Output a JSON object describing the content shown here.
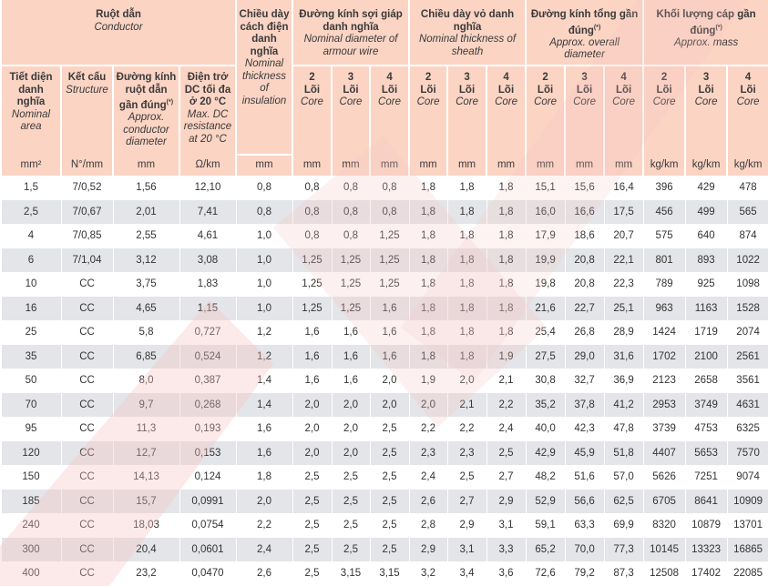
{
  "header": {
    "conductor": {
      "vi": "Ruột dẫn",
      "en": "Conductor"
    },
    "insulation": {
      "vi": "Chiều dày cách điện danh nghĩa",
      "en": "Nominal thickness of insulation",
      "unit": "mm"
    },
    "armour": {
      "vi": "Đường kính sợi giáp danh nghĩa",
      "en": "Nominal diameter of armour wire"
    },
    "sheath": {
      "vi": "Chiều dày vỏ danh nghĩa",
      "en": "Nominal thickness of sheath"
    },
    "overall": {
      "vi": "Đường kính tổng gần đúng",
      "sup": "(*)",
      "en": "Approx. overall diameter"
    },
    "mass": {
      "vi": "Khối lượng cáp gần đúng",
      "sup": "(*)",
      "en": "Approx. mass"
    },
    "area": {
      "vi": "Tiết diện danh nghĩa",
      "en": "Nominal area",
      "unit": "mm²"
    },
    "structure": {
      "vi": "Kết cấu",
      "en": "Structure",
      "unit": "N°/mm"
    },
    "cond_diam": {
      "vi": "Đường kính ruột dẫn gần đúng",
      "sup": "(*)",
      "en": "Approx. conductor diameter",
      "unit": "mm"
    },
    "resistance": {
      "vi": "Điện trở DC tối đa ở 20 °C",
      "en": "Max. DC resistance at 20 °C",
      "unit": "Ω/km"
    },
    "core_word_vi": "Lõi",
    "core_word_en": "Core",
    "cores": [
      "2",
      "3",
      "4"
    ],
    "unit_mm": "mm",
    "unit_kgkm": "kg/km"
  },
  "rows": [
    [
      "1,5",
      "7/0,52",
      "1,56",
      "12,10",
      "0,8",
      "0,8",
      "0,8",
      "0,8",
      "1,8",
      "1,8",
      "1,8",
      "15,1",
      "15,6",
      "16,4",
      "396",
      "429",
      "478"
    ],
    [
      "2,5",
      "7/0,67",
      "2,01",
      "7,41",
      "0,8",
      "0,8",
      "0,8",
      "0,8",
      "1,8",
      "1,8",
      "1,8",
      "16,0",
      "16,6",
      "17,5",
      "456",
      "499",
      "565"
    ],
    [
      "4",
      "7/0,85",
      "2,55",
      "4,61",
      "1,0",
      "0,8",
      "0,8",
      "1,25",
      "1,8",
      "1,8",
      "1,8",
      "17,9",
      "18,6",
      "20,7",
      "575",
      "640",
      "874"
    ],
    [
      "6",
      "7/1,04",
      "3,12",
      "3,08",
      "1,0",
      "1,25",
      "1,25",
      "1,25",
      "1,8",
      "1,8",
      "1,8",
      "19,9",
      "20,8",
      "22,1",
      "801",
      "893",
      "1022"
    ],
    [
      "10",
      "CC",
      "3,75",
      "1,83",
      "1,0",
      "1,25",
      "1,25",
      "1,25",
      "1,8",
      "1,8",
      "1,8",
      "19,8",
      "20,8",
      "22,3",
      "789",
      "925",
      "1098"
    ],
    [
      "16",
      "CC",
      "4,65",
      "1,15",
      "1,0",
      "1,25",
      "1,25",
      "1,6",
      "1,8",
      "1,8",
      "1,8",
      "21,6",
      "22,7",
      "25,1",
      "963",
      "1163",
      "1528"
    ],
    [
      "25",
      "CC",
      "5,8",
      "0,727",
      "1,2",
      "1,6",
      "1,6",
      "1,6",
      "1,8",
      "1,8",
      "1,8",
      "25,4",
      "26,8",
      "28,9",
      "1424",
      "1719",
      "2074"
    ],
    [
      "35",
      "CC",
      "6,85",
      "0,524",
      "1,2",
      "1,6",
      "1,6",
      "1,6",
      "1,8",
      "1,8",
      "1,9",
      "27,5",
      "29,0",
      "31,6",
      "1702",
      "2100",
      "2561"
    ],
    [
      "50",
      "CC",
      "8,0",
      "0,387",
      "1,4",
      "1,6",
      "1,6",
      "2,0",
      "1,9",
      "2,0",
      "2,1",
      "30,8",
      "32,7",
      "36,9",
      "2123",
      "2658",
      "3561"
    ],
    [
      "70",
      "CC",
      "9,7",
      "0,268",
      "1,4",
      "2,0",
      "2,0",
      "2,0",
      "2,0",
      "2,1",
      "2,2",
      "35,2",
      "37,8",
      "41,2",
      "2953",
      "3749",
      "4631"
    ],
    [
      "95",
      "CC",
      "11,3",
      "0,193",
      "1,6",
      "2,0",
      "2,0",
      "2,5",
      "2,2",
      "2,2",
      "2,4",
      "40,0",
      "42,3",
      "47,8",
      "3739",
      "4753",
      "6325"
    ],
    [
      "120",
      "CC",
      "12,7",
      "0,153",
      "1,6",
      "2,0",
      "2,0",
      "2,5",
      "2,3",
      "2,3",
      "2,5",
      "42,9",
      "45,9",
      "51,8",
      "4407",
      "5653",
      "7570"
    ],
    [
      "150",
      "CC",
      "14,13",
      "0,124",
      "1,8",
      "2,5",
      "2,5",
      "2,5",
      "2,4",
      "2,5",
      "2,7",
      "48,2",
      "51,6",
      "57,0",
      "5626",
      "7251",
      "9074"
    ],
    [
      "185",
      "CC",
      "15,7",
      "0,0991",
      "2,0",
      "2,5",
      "2,5",
      "2,5",
      "2,6",
      "2,7",
      "2,9",
      "52,9",
      "56,6",
      "62,5",
      "6705",
      "8641",
      "10909"
    ],
    [
      "240",
      "CC",
      "18,03",
      "0,0754",
      "2,2",
      "2,5",
      "2,5",
      "2,5",
      "2,8",
      "2,9",
      "3,1",
      "59,1",
      "63,3",
      "69,9",
      "8320",
      "10879",
      "13701"
    ],
    [
      "300",
      "CC",
      "20,4",
      "0,0601",
      "2,4",
      "2,5",
      "2,5",
      "2,5",
      "2,9",
      "3,1",
      "3,3",
      "65,2",
      "70,0",
      "77,3",
      "10145",
      "13323",
      "16865"
    ],
    [
      "400",
      "CC",
      "23,2",
      "0,0470",
      "2,6",
      "2,5",
      "3,15",
      "3,15",
      "3,2",
      "3,4",
      "3,6",
      "72,6",
      "79,2",
      "87,3",
      "12508",
      "17402",
      "22085"
    ]
  ],
  "colors": {
    "header_bg": "#fbd4c4",
    "row_alt": "#e1e2e5",
    "watermark": "#f7c9c9"
  }
}
